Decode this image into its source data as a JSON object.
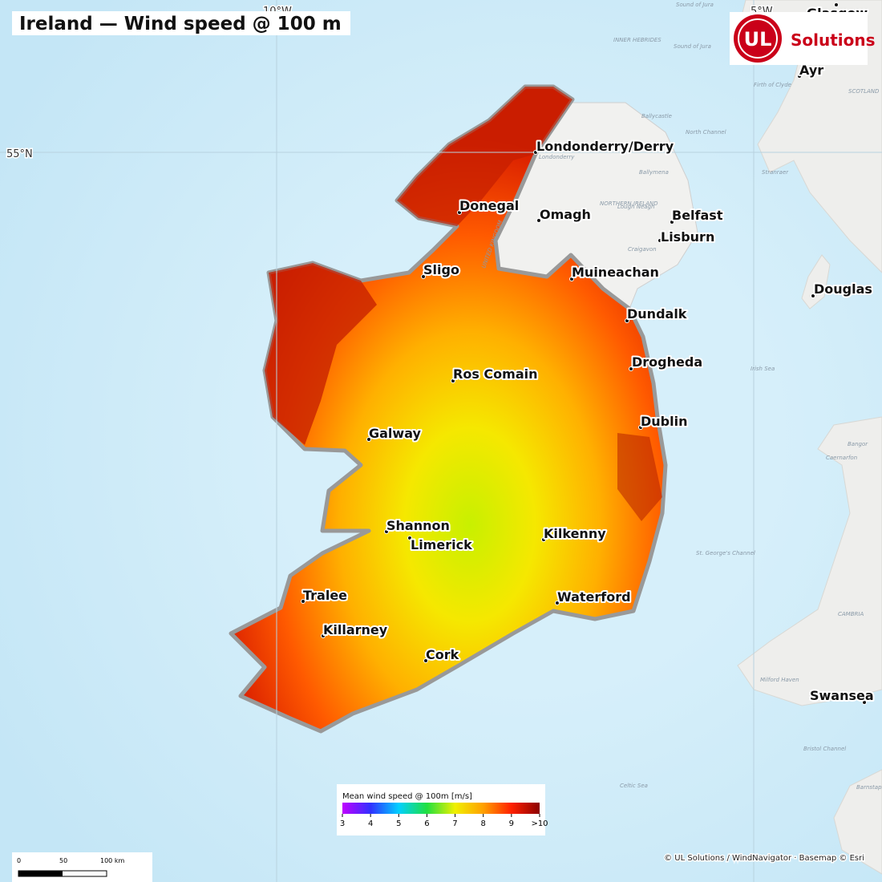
{
  "title": "Ireland — Wind speed @ 100 m",
  "logo": {
    "mark": "UL",
    "text": "Solutions"
  },
  "graticule": {
    "lon_labels": [
      "10°W",
      "5°W"
    ],
    "lat_labels": [
      "55°N"
    ]
  },
  "cities": [
    "Londonderry/Derry",
    "Donegal",
    "Omagh",
    "Belfast",
    "Lisburn",
    "Sligo",
    "Muineachan",
    "Dundalk",
    "Drogheda",
    "Ros Comain",
    "Dublin",
    "Galway",
    "Shannon",
    "Limerick",
    "Kilkenny",
    "Tralee",
    "Waterford",
    "Killarney",
    "Cork",
    "Douglas",
    "Ayr",
    "Glasgow",
    "Swansea"
  ],
  "basemap_labels": [
    "Sound of Jura",
    "INNER HEBRIDES",
    "Sound of Jura",
    "Firth of Clyde",
    "SCOTLAND",
    "Ballycastle",
    "North Channel",
    "Londonderry",
    "Ballymena",
    "Stranraer",
    "NORTHERN IRELAND",
    "Lough Neagh",
    "UNITED KINGDOM",
    "Craigavon",
    "Irish Sea",
    "Bangor",
    "Caernarfon",
    "St. George's Channel",
    "CAMBRIA",
    "Milford Haven",
    "Bristol Channel",
    "Celtic Sea",
    "Barnstaple"
  ],
  "legend": {
    "title": "Mean wind speed @ 100m  [m/s]",
    "ticks": [
      3,
      4,
      5,
      6,
      7,
      8,
      9,
      {
        "value": 10,
        "label": ">10"
      }
    ],
    "colors": [
      "#c000ff",
      "#3030ff",
      "#00d0ff",
      "#20e040",
      "#f0f000",
      "#ffa000",
      "#ff2000",
      "#8b0000"
    ]
  },
  "scale_bar": {
    "labels": [
      "0",
      "50",
      "100 km"
    ]
  },
  "attribution": "© UL Solutions / WindNavigator · Basemap © Esri"
}
